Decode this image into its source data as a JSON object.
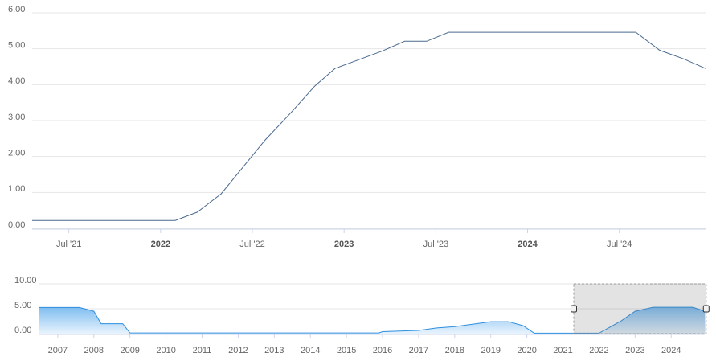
{
  "chart_data": [
    {
      "type": "line",
      "color": "#4a6a8f",
      "x": [
        2021.3,
        2022.08,
        2022.2,
        2022.33,
        2022.57,
        2022.71,
        2022.84,
        2022.95,
        2023.21,
        2023.33,
        2023.45,
        2023.57,
        2024.59,
        2024.72,
        2024.85,
        2024.97
      ],
      "values": [
        0.22,
        0.22,
        0.45,
        0.96,
        2.46,
        3.22,
        3.96,
        4.45,
        4.94,
        5.21,
        5.21,
        5.46,
        5.46,
        4.96,
        4.72,
        4.45
      ],
      "xlim": [
        2021.3,
        2024.97
      ],
      "ylim": [
        0,
        6
      ],
      "xticks": [
        {
          "value": 2021.5,
          "label": "Jul '21"
        },
        2022,
        {
          "value": 2022.5,
          "label": "Jul '22"
        },
        2023,
        {
          "value": 2023.5,
          "label": "Jul '23"
        },
        2024,
        {
          "value": 2024.5,
          "label": "Jul '24"
        }
      ],
      "yticks": [
        {
          "value": 0,
          "label": "0.00"
        },
        {
          "value": 1,
          "label": "1.00"
        },
        {
          "value": 2,
          "label": "2.00"
        },
        {
          "value": 3,
          "label": "3.00"
        },
        {
          "value": 4,
          "label": "4.00"
        },
        {
          "value": 5,
          "label": "5.00"
        },
        {
          "value": 6,
          "label": "6.00"
        }
      ],
      "grid": true
    },
    {
      "type": "area",
      "color": "#2f8fde",
      "x": [
        2006.49,
        2007.6,
        2008.0,
        2008.2,
        2008.8,
        2009.0,
        2015.9,
        2016.0,
        2017.0,
        2017.5,
        2018.0,
        2019.0,
        2019.5,
        2019.9,
        2020.2,
        2022.0,
        2022.6,
        2023.0,
        2023.5,
        2024.6,
        2024.93
      ],
      "values": [
        5.25,
        5.25,
        4.5,
        2.0,
        2.0,
        0.15,
        0.15,
        0.4,
        0.65,
        1.15,
        1.4,
        2.4,
        2.4,
        1.6,
        0.1,
        0.1,
        2.5,
        4.5,
        5.3,
        5.3,
        4.5
      ],
      "xlim": [
        2006.49,
        2024.93
      ],
      "ylim": [
        0,
        10
      ],
      "xticks": [
        2007,
        2008,
        2009,
        2010,
        2011,
        2012,
        2013,
        2014,
        2015,
        2016,
        2017,
        2018,
        2019,
        2020,
        2021,
        2022,
        2023,
        2024
      ],
      "yticks": [
        {
          "value": 0,
          "label": "0.00"
        },
        {
          "value": 5,
          "label": "5.00"
        },
        {
          "value": 10,
          "label": "10.00"
        }
      ],
      "grid": true
    }
  ]
}
